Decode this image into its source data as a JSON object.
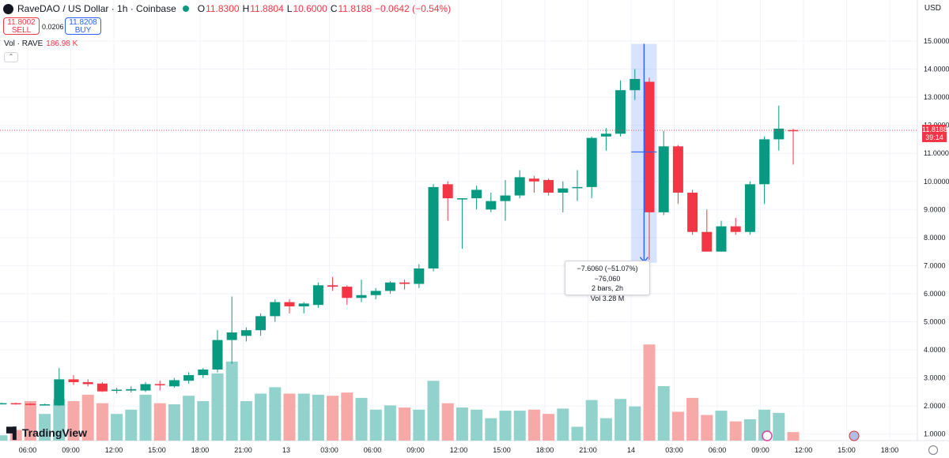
{
  "header": {
    "symbol": "RaveDAO / US Dollar · 1h · Coinbase",
    "o_label": "O",
    "o_value": "11.8300",
    "h_label": "H",
    "h_value": "11.8804",
    "l_label": "L",
    "l_value": "10.6000",
    "c_label": "C",
    "c_value": "11.8188",
    "change": "−0.0642 (−0.54%)"
  },
  "trade": {
    "sell_price": "11.8002",
    "sell_label": "SELL",
    "spread": "0.0206",
    "buy_price": "11.8208",
    "buy_label": "BUY"
  },
  "volume_label": {
    "name": "Vol · RAVE",
    "value": "186.98 K"
  },
  "currency": "USD",
  "current_price": {
    "price": "11.8188",
    "countdown": "39:14"
  },
  "measure": {
    "line1": "−7.6060 (−51.07%) −76,060",
    "line2": "2 bars, 2h",
    "line3": "Vol 3.28 M"
  },
  "watermark": "TradingView",
  "colors": {
    "up": "#089981",
    "down": "#f23645",
    "up_vol": "#92d2cc",
    "down_vol": "#f7a9a7",
    "measure": "#2962ff"
  },
  "chart_data": {
    "type": "candlestick",
    "interval": "1h",
    "y_range": [
      0.6,
      15.3
    ],
    "y_ticks": [
      "15.0000",
      "14.0000",
      "13.0000",
      "12.0000",
      "11.0000",
      "10.0000",
      "9.0000",
      "8.0000",
      "7.0000",
      "6.0000",
      "5.0000",
      "4.0000",
      "3.0000",
      "2.0000",
      "1.0000"
    ],
    "x_ticks": [
      "06:00",
      "09:00",
      "12:00",
      "15:00",
      "18:00",
      "21:00",
      "13",
      "03:00",
      "06:00",
      "09:00",
      "12:00",
      "15:00",
      "18:00",
      "21:00",
      "14",
      "03:00",
      "06:00",
      "09:00",
      "12:00",
      "15:00",
      "18:00"
    ],
    "candles": [
      [
        2.1,
        2.12,
        2.08,
        2.1
      ],
      [
        2.1,
        2.12,
        2.05,
        2.08
      ],
      [
        2.08,
        2.1,
        2.02,
        2.04
      ],
      [
        2.05,
        2.08,
        2.02,
        2.06
      ],
      [
        2.02,
        3.35,
        2.0,
        2.95
      ],
      [
        2.95,
        3.1,
        2.75,
        2.85
      ],
      [
        2.85,
        2.95,
        2.7,
        2.78
      ],
      [
        2.8,
        2.85,
        2.5,
        2.52
      ],
      [
        2.55,
        2.65,
        2.45,
        2.58
      ],
      [
        2.55,
        2.7,
        2.48,
        2.6
      ],
      [
        2.55,
        2.85,
        2.5,
        2.78
      ],
      [
        2.78,
        2.9,
        2.55,
        2.75
      ],
      [
        2.7,
        3.0,
        2.65,
        2.92
      ],
      [
        2.9,
        3.2,
        2.8,
        3.1
      ],
      [
        3.1,
        3.35,
        3.0,
        3.3
      ],
      [
        3.3,
        4.7,
        3.2,
        4.35
      ],
      [
        4.35,
        5.9,
        3.5,
        4.62
      ],
      [
        4.5,
        4.8,
        4.3,
        4.7
      ],
      [
        4.7,
        5.3,
        4.5,
        5.2
      ],
      [
        5.2,
        5.8,
        5.0,
        5.7
      ],
      [
        5.7,
        5.8,
        5.3,
        5.55
      ],
      [
        5.55,
        5.7,
        5.3,
        5.65
      ],
      [
        5.6,
        6.4,
        5.5,
        6.3
      ],
      [
        6.3,
        6.6,
        6.1,
        6.25
      ],
      [
        6.25,
        6.3,
        5.6,
        5.85
      ],
      [
        5.85,
        6.5,
        5.7,
        5.95
      ],
      [
        5.95,
        6.2,
        5.8,
        6.1
      ],
      [
        6.1,
        6.45,
        6.0,
        6.4
      ],
      [
        6.4,
        6.5,
        6.15,
        6.35
      ],
      [
        6.35,
        7.05,
        6.2,
        6.9
      ],
      [
        6.9,
        9.9,
        6.8,
        9.8
      ],
      [
        9.9,
        10.0,
        8.6,
        9.4
      ],
      [
        9.4,
        9.4,
        7.6,
        9.4
      ],
      [
        9.4,
        9.85,
        9.0,
        9.7
      ],
      [
        9.0,
        9.6,
        8.9,
        9.3
      ],
      [
        9.3,
        10.05,
        8.6,
        9.5
      ],
      [
        9.5,
        10.4,
        9.4,
        10.15
      ],
      [
        10.1,
        10.2,
        9.6,
        10.0
      ],
      [
        10.05,
        10.1,
        9.5,
        9.6
      ],
      [
        9.6,
        10.0,
        8.9,
        9.75
      ],
      [
        9.8,
        10.4,
        9.3,
        9.8
      ],
      [
        9.8,
        11.6,
        9.4,
        11.55
      ],
      [
        11.6,
        11.9,
        11.1,
        11.7
      ],
      [
        11.7,
        13.6,
        11.6,
        13.25
      ],
      [
        13.25,
        14.0,
        12.9,
        13.65
      ],
      [
        13.55,
        13.7,
        7.2,
        8.9
      ],
      [
        8.9,
        11.8,
        8.8,
        11.25
      ],
      [
        11.25,
        11.3,
        9.2,
        9.6
      ],
      [
        9.6,
        9.7,
        8.1,
        8.2
      ],
      [
        8.2,
        9.0,
        7.5,
        7.5
      ],
      [
        7.5,
        8.6,
        7.5,
        8.4
      ],
      [
        8.4,
        8.7,
        8.1,
        8.2
      ],
      [
        8.2,
        10.0,
        8.1,
        9.9
      ],
      [
        9.9,
        11.6,
        9.2,
        11.5
      ],
      [
        11.5,
        12.7,
        11.1,
        11.88
      ],
      [
        11.83,
        11.88,
        10.6,
        11.82
      ]
    ],
    "volume_scale": [
      0,
      5.1
    ],
    "volumes": [
      0.25,
      0.5,
      1.85,
      1.25,
      1.95,
      1.85,
      2.15,
      1.75,
      1.25,
      1.45,
      2.15,
      1.75,
      1.7,
      2.1,
      1.85,
      3.15,
      3.7,
      1.85,
      2.2,
      2.5,
      2.2,
      2.2,
      2.15,
      2.1,
      2.25,
      2.0,
      1.45,
      1.65,
      1.55,
      1.45,
      2.8,
      1.75,
      1.55,
      1.45,
      1.05,
      1.4,
      1.4,
      1.45,
      1.25,
      1.5,
      0.65,
      1.9,
      1.05,
      1.95,
      1.6,
      4.5,
      2.55,
      1.35,
      2.0,
      1.2,
      1.4,
      0.9,
      1.0,
      1.45,
      1.3,
      0.4
    ]
  }
}
